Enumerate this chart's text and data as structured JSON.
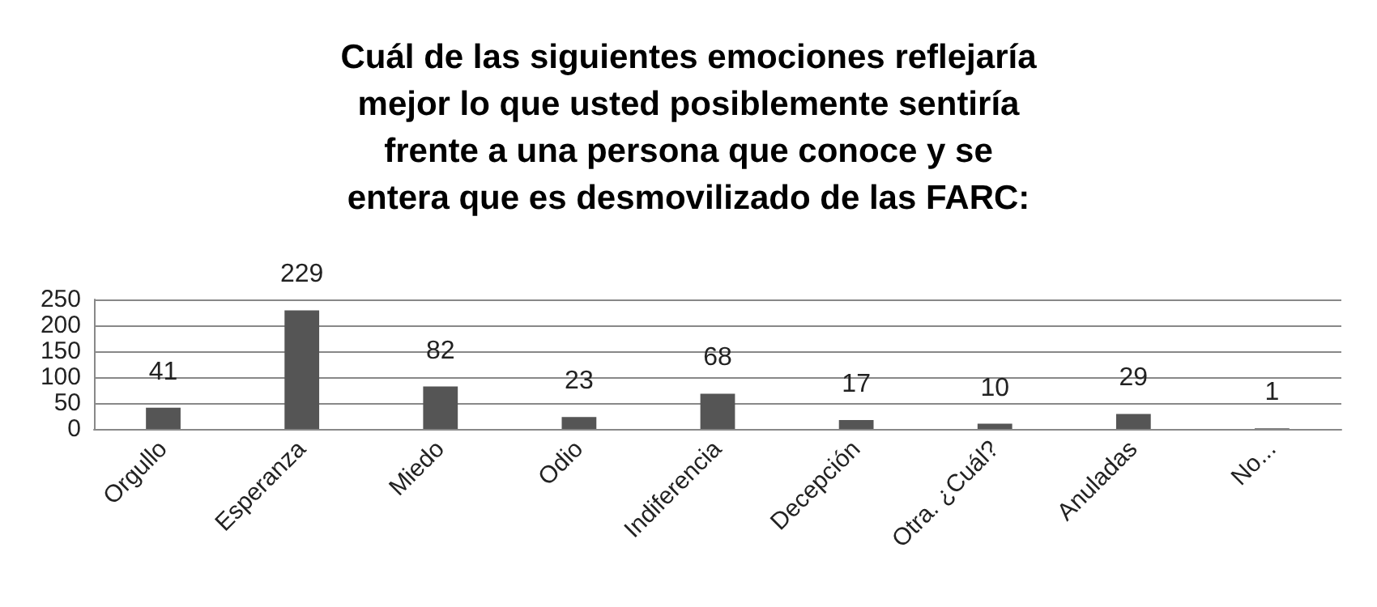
{
  "chart_data": {
    "type": "bar",
    "title": "Cuál de las siguientes emociones reflejaría\nmejor lo que usted posiblemente sentiría\nfrente a una persona que conoce y se\nentera que es desmovilizado de las FARC:",
    "categories": [
      "Orgullo",
      "Esperanza",
      "Miedo",
      "Odio",
      "Indiferencia",
      "Decepción",
      "Otra. ¿Cuál?",
      "Anuladas",
      "No..."
    ],
    "values": [
      41,
      229,
      82,
      23,
      68,
      17,
      10,
      29,
      1
    ],
    "color": "#555555",
    "ylim": [
      0,
      250
    ],
    "yticks": [
      0,
      50,
      100,
      150,
      200,
      250
    ],
    "grid": "y",
    "data_labels": true
  }
}
